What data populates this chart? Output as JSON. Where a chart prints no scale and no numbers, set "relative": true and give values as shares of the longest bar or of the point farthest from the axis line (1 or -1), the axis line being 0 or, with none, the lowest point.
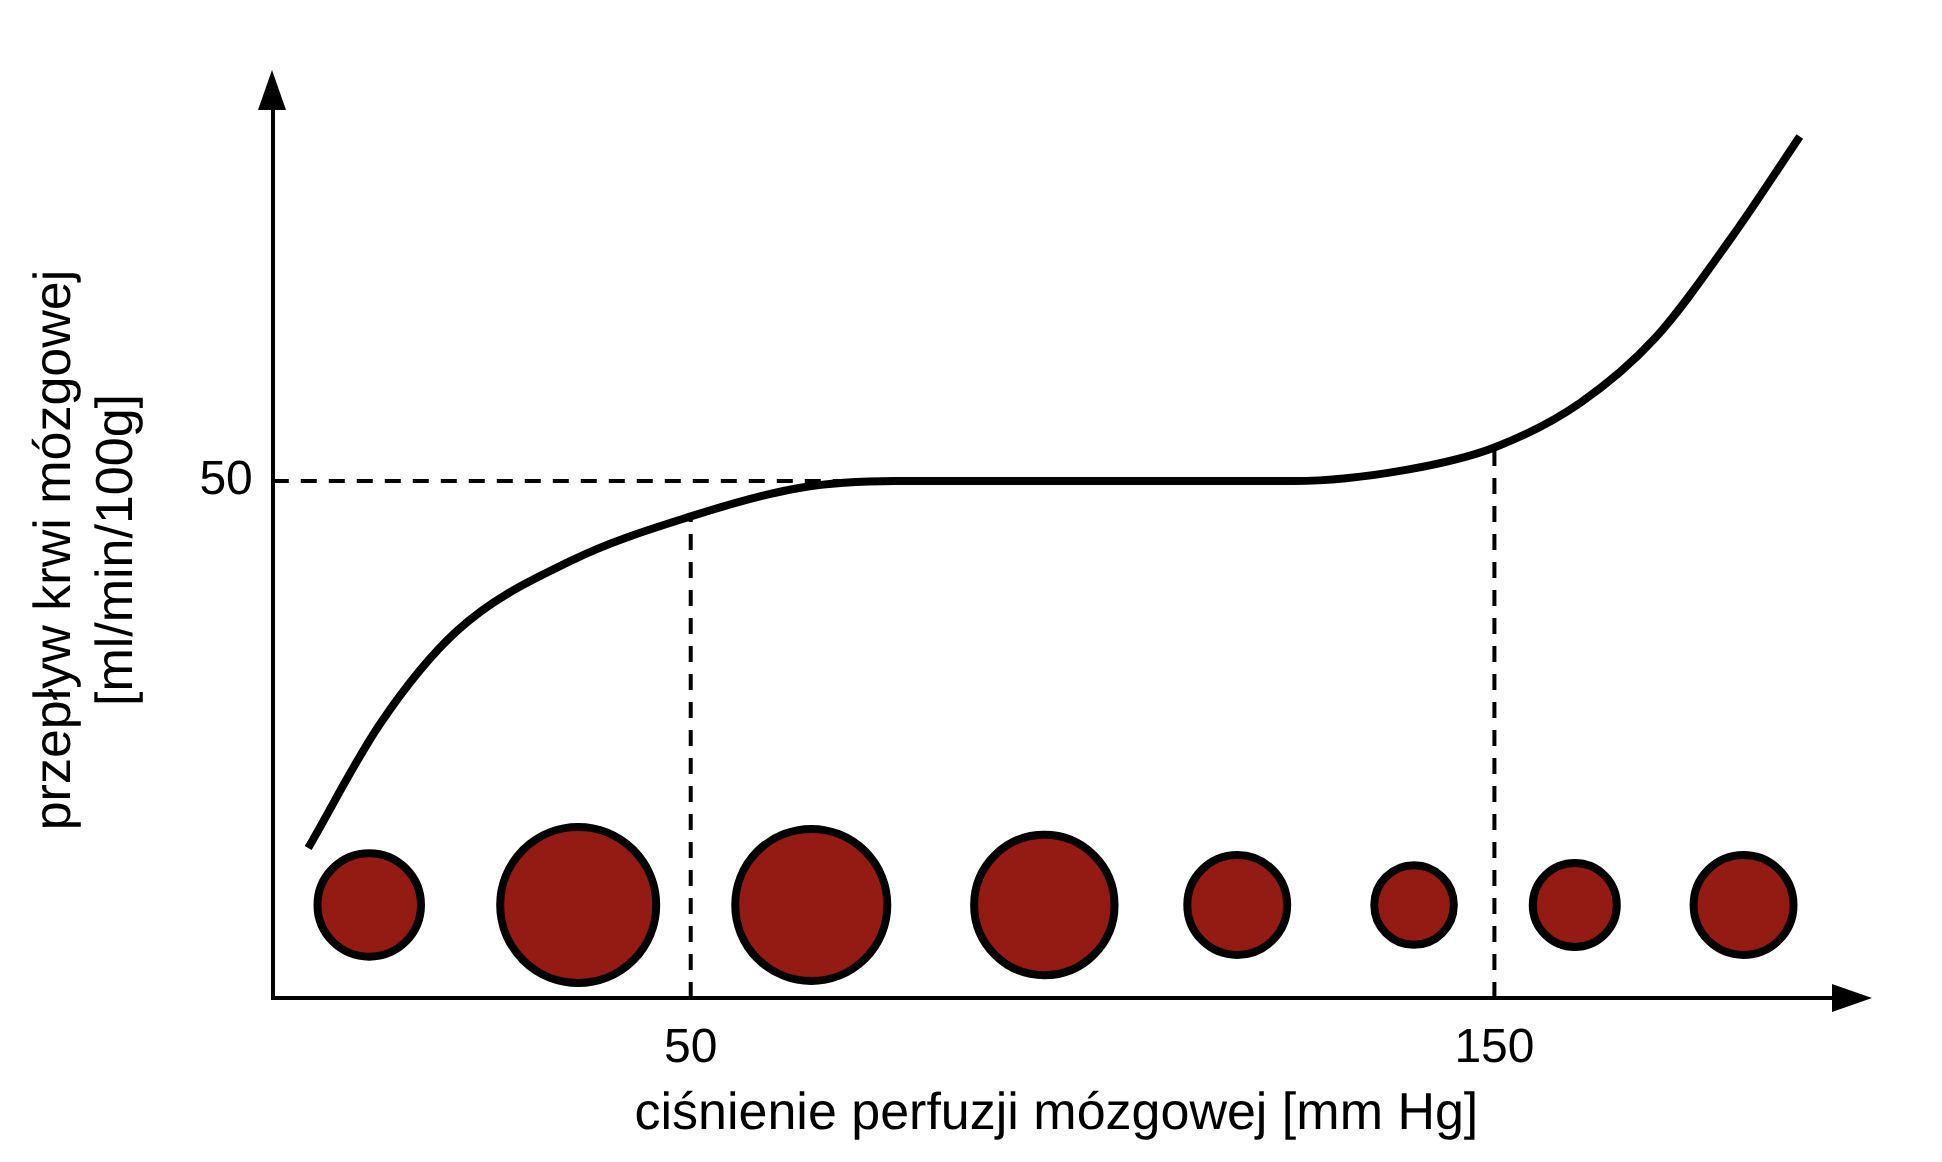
{
  "chart_data": {
    "type": "line",
    "relative": true,
    "xlabel": "ciśnienie perfuzji mózgowej [mm Hg]",
    "ylabel": "przepływ krwi mózgowej\n[ml/min/100g]",
    "xlim": [
      -2,
      193
    ],
    "xticks": [
      50,
      150
    ],
    "grid": false,
    "legend": false,
    "line_style": "solid",
    "annotations": [
      "50"
    ],
    "ref_lines": [
      {
        "axis": "y",
        "value": 0.6,
        "line_style": "dashed",
        "color": "#000000"
      },
      {
        "axis": "x",
        "value": 50,
        "line_style": "dashed",
        "color": "#000000"
      },
      {
        "axis": "x",
        "value": 150,
        "line_style": "dashed",
        "color": "#000000"
      }
    ],
    "series": [
      {
        "color": "#000000",
        "marker": "none",
        "x": [
          2.4,
          11.4,
          20.9,
          35,
          50,
          63.5,
          75.4,
          94,
          125,
          139,
          150,
          160.7,
          170,
          179.6,
          188
        ],
        "values": [
          0.174,
          0.319,
          0.426,
          0.507,
          0.559,
          0.592,
          0.6,
          0.6,
          0.6,
          0.613,
          0.639,
          0.691,
          0.766,
          0.884,
          1
        ]
      },
      {
        "type": "bubble",
        "marker": "circle",
        "color": "#941b13",
        "x": [
          10,
          36,
          65,
          94,
          118,
          140,
          160,
          181
        ],
        "values": [
          0.108,
          0.108,
          0.108,
          0.108,
          0.108,
          0.108,
          0.108,
          0.108
        ],
        "sizes": [
          0.44,
          1,
          0.95,
          0.81,
          0.41,
          0.26,
          0.29,
          0.41
        ]
      }
    ]
  }
}
